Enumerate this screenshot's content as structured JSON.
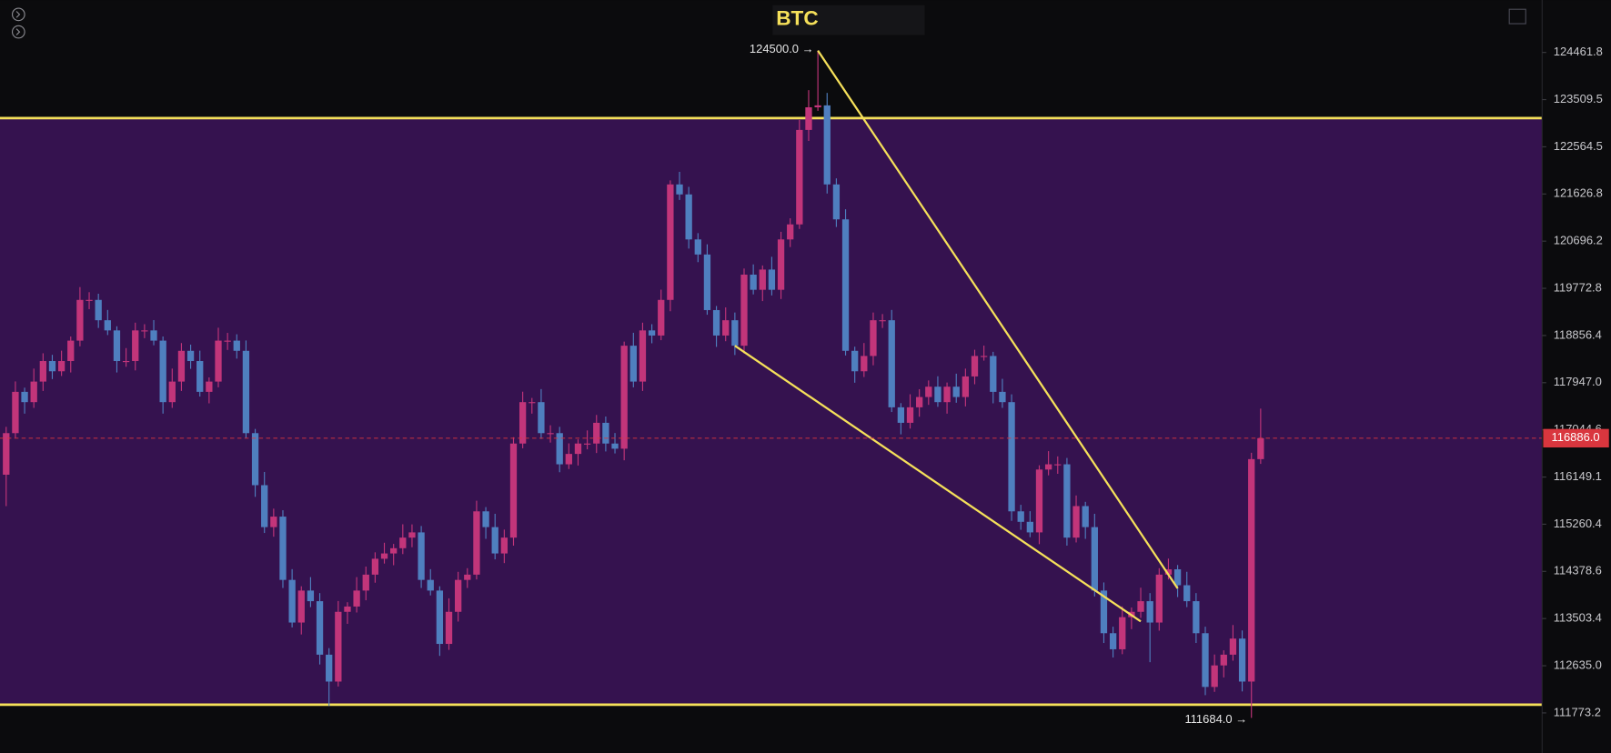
{
  "chart_data": {
    "type": "candlestick",
    "title": "BTC",
    "log_scale": true,
    "up_color": "#c2357a",
    "down_color": "#4f7fbf",
    "ylim": [
      111047,
      125528
    ],
    "yticks": [
      124461.8,
      123509.5,
      122564.5,
      121626.8,
      120696.2,
      119772.8,
      118856.4,
      {
        "value": 117947,
        "label": "117947.0"
      },
      117044.6,
      116149.1,
      115260.4,
      114378.6,
      113503.4,
      {
        "value": 112635,
        "label": "112635.0"
      },
      111773.2
    ],
    "zone": {
      "top": 123138,
      "bottom": 111923,
      "color": "#35124f",
      "line_color": "#f5e05a"
    },
    "last_price": {
      "value": 116886,
      "label": "116886.0",
      "color": "#d9363e"
    },
    "annotations": [
      {
        "candle": 88,
        "value": 124500,
        "label": "124500.0 →",
        "at": "high"
      },
      {
        "candle": 135,
        "value": 111684,
        "label": "111684.0 →",
        "at": "low"
      }
    ],
    "trendlines": [
      {
        "from": [
          88,
          124500
        ],
        "to": [
          127,
          114062
        ],
        "color": "#f5e05a"
      },
      {
        "from": [
          79,
          118659
        ],
        "to": [
          123,
          113450
        ],
        "color": "#f5e05a"
      }
    ],
    "candles": [
      [
        116193,
        117102,
        115600,
        116982
      ],
      [
        116982,
        117971,
        116892,
        117771
      ],
      [
        117771,
        117851,
        117354,
        117574
      ],
      [
        117574,
        118218,
        117464,
        117968
      ],
      [
        117968,
        118513,
        117788,
        118363
      ],
      [
        118363,
        118483,
        118016,
        118166
      ],
      [
        118166,
        118563,
        118076,
        118363
      ],
      [
        118363,
        118837,
        118143,
        118757
      ],
      [
        118757,
        119797,
        118647,
        119547
      ],
      [
        119547,
        119697,
        119367,
        119547
      ],
      [
        119547,
        119667,
        119002,
        119152
      ],
      [
        119152,
        119352,
        118865,
        118955
      ],
      [
        118955,
        119035,
        118143,
        118363
      ],
      [
        118363,
        118613,
        118253,
        118363
      ],
      [
        118363,
        119105,
        118183,
        118955
      ],
      [
        118955,
        119075,
        118805,
        118955
      ],
      [
        118955,
        119155,
        118667,
        118757
      ],
      [
        118757,
        118837,
        117354,
        117574
      ],
      [
        117574,
        118218,
        117464,
        117968
      ],
      [
        117968,
        118710,
        117788,
        118560
      ],
      [
        118560,
        118680,
        118213,
        118363
      ],
      [
        118363,
        118563,
        117681,
        117771
      ],
      [
        117771,
        118048,
        117551,
        117968
      ],
      [
        117968,
        119007,
        117858,
        118757
      ],
      [
        118757,
        118907,
        118577,
        118757
      ],
      [
        118757,
        118880,
        118410,
        118560
      ],
      [
        118560,
        118760,
        116892,
        116982
      ],
      [
        116982,
        117062,
        115775,
        115995
      ],
      [
        115995,
        116245,
        115096,
        115206
      ],
      [
        115206,
        115553,
        115026,
        115403
      ],
      [
        115403,
        115523,
        114070,
        114220
      ],
      [
        114220,
        114420,
        113340,
        113430
      ],
      [
        113430,
        114102,
        113210,
        114022
      ],
      [
        114022,
        114272,
        113715,
        113825
      ],
      [
        113825,
        113975,
        112658,
        112838
      ],
      [
        112838,
        112958,
        111900,
        112345
      ],
      [
        112345,
        113828,
        112255,
        113628
      ],
      [
        113628,
        113806,
        113406,
        113726
      ],
      [
        113726,
        114272,
        113616,
        114022
      ],
      [
        114022,
        114468,
        113842,
        114318
      ],
      [
        114318,
        114734,
        114168,
        114614
      ],
      [
        114614,
        114913,
        114524,
        114713
      ],
      [
        114713,
        114891,
        114493,
        114811
      ],
      [
        114811,
        115259,
        114701,
        115009
      ],
      [
        115009,
        115257,
        114829,
        115107
      ],
      [
        115107,
        115227,
        114070,
        114220
      ],
      [
        114220,
        114420,
        113932,
        114022
      ],
      [
        114022,
        114102,
        112816,
        113036
      ],
      [
        113036,
        113878,
        112926,
        113628
      ],
      [
        113628,
        114370,
        113448,
        114220
      ],
      [
        114220,
        114438,
        114070,
        114318
      ],
      [
        114318,
        115702,
        114228,
        115502
      ],
      [
        115502,
        115582,
        114986,
        115206
      ],
      [
        115206,
        115456,
        114603,
        114713
      ],
      [
        114713,
        115159,
        114533,
        115009
      ],
      [
        115009,
        116904,
        114859,
        116784
      ],
      [
        116784,
        117774,
        116694,
        117574
      ],
      [
        117574,
        117654,
        117354,
        117574
      ],
      [
        117574,
        117824,
        116872,
        116982
      ],
      [
        116982,
        117132,
        116802,
        116982
      ],
      [
        116982,
        117102,
        116240,
        116390
      ],
      [
        116390,
        116787,
        116300,
        116587
      ],
      [
        116587,
        116864,
        116367,
        116784
      ],
      [
        116784,
        117034,
        116674,
        116784
      ],
      [
        116784,
        117329,
        116604,
        117179
      ],
      [
        117179,
        117299,
        116634,
        116784
      ],
      [
        116784,
        116984,
        116596,
        116686
      ],
      [
        116686,
        118739,
        116466,
        118659
      ],
      [
        118659,
        118909,
        117858,
        117968
      ],
      [
        117968,
        119105,
        117788,
        118955
      ],
      [
        118955,
        119075,
        118706,
        118856
      ],
      [
        118856,
        119747,
        118766,
        119547
      ],
      [
        119547,
        121896,
        119327,
        121816
      ],
      [
        121816,
        122066,
        121508,
        121618
      ],
      [
        121618,
        121768,
        120550,
        120730
      ],
      [
        120730,
        120854,
        120284,
        120434
      ],
      [
        120434,
        120634,
        119259,
        119349
      ],
      [
        119349,
        119429,
        118636,
        118856
      ],
      [
        118856,
        119402,
        118746,
        119152
      ],
      [
        119152,
        119302,
        118479,
        118659
      ],
      [
        118659,
        120160,
        118509,
        120040
      ],
      [
        120040,
        120240,
        119654,
        119744
      ],
      [
        119744,
        120219,
        119524,
        120139
      ],
      [
        120139,
        120389,
        119634,
        119744
      ],
      [
        119744,
        120880,
        119564,
        120730
      ],
      [
        120730,
        121146,
        120580,
        121026
      ],
      [
        121026,
        123101,
        120936,
        122901
      ],
      [
        122901,
        123700,
        122681,
        123355
      ],
      [
        123355,
        124500,
        123284,
        123394
      ],
      [
        123394,
        123644,
        121636,
        121816
      ],
      [
        121816,
        121936,
        120975,
        121125
      ],
      [
        121125,
        121325,
        118470,
        118560
      ],
      [
        118560,
        118640,
        117946,
        118166
      ],
      [
        118166,
        118711,
        118056,
        118461
      ],
      [
        118461,
        119302,
        118281,
        119152
      ],
      [
        119152,
        119272,
        119002,
        119152
      ],
      [
        119152,
        119352,
        117385,
        117475
      ],
      [
        117475,
        117555,
        116959,
        117179
      ],
      [
        117179,
        117725,
        117069,
        117475
      ],
      [
        117475,
        117822,
        117295,
        117672
      ],
      [
        117672,
        117990,
        117522,
        117870
      ],
      [
        117870,
        118070,
        117484,
        117574
      ],
      [
        117574,
        117950,
        117354,
        117870
      ],
      [
        117870,
        118120,
        117562,
        117672
      ],
      [
        117672,
        118217,
        117492,
        118067
      ],
      [
        118067,
        118581,
        117917,
        118461
      ],
      [
        118461,
        118661,
        118371,
        118461
      ],
      [
        118461,
        118541,
        117551,
        117771
      ],
      [
        117771,
        118021,
        117464,
        117574
      ],
      [
        117574,
        117724,
        115322,
        115502
      ],
      [
        115502,
        115625,
        115155,
        115305
      ],
      [
        115305,
        115505,
        115017,
        115107
      ],
      [
        115107,
        116371,
        114887,
        116291
      ],
      [
        116291,
        116640,
        116181,
        116390
      ],
      [
        116390,
        116540,
        116210,
        116390
      ],
      [
        116390,
        116510,
        114859,
        115009
      ],
      [
        115009,
        115801,
        114919,
        115601
      ],
      [
        115601,
        115681,
        114986,
        115206
      ],
      [
        115206,
        115456,
        113912,
        114022
      ],
      [
        114022,
        114173,
        113053,
        113233
      ],
      [
        113233,
        113353,
        112787,
        112937
      ],
      [
        112937,
        113729,
        112847,
        113529
      ],
      [
        113529,
        113708,
        113308,
        113628
      ],
      [
        113628,
        114075,
        113515,
        113825
      ],
      [
        113825,
        113975,
        112700,
        113430
      ],
      [
        113430,
        114438,
        113280,
        114318
      ],
      [
        114318,
        114617,
        114228,
        114417
      ],
      [
        114417,
        114497,
        113901,
        114121
      ],
      [
        114121,
        114371,
        113715,
        113825
      ],
      [
        113825,
        113975,
        113053,
        113233
      ],
      [
        113233,
        113353,
        112097,
        112247
      ],
      [
        112247,
        112841,
        112157,
        112641
      ],
      [
        112641,
        112918,
        112421,
        112838
      ],
      [
        112838,
        113384,
        112728,
        113134
      ],
      [
        113134,
        113284,
        112165,
        112345
      ],
      [
        112345,
        116608,
        111684,
        116488
      ],
      [
        116488,
        117450,
        116398,
        116886
      ]
    ]
  }
}
